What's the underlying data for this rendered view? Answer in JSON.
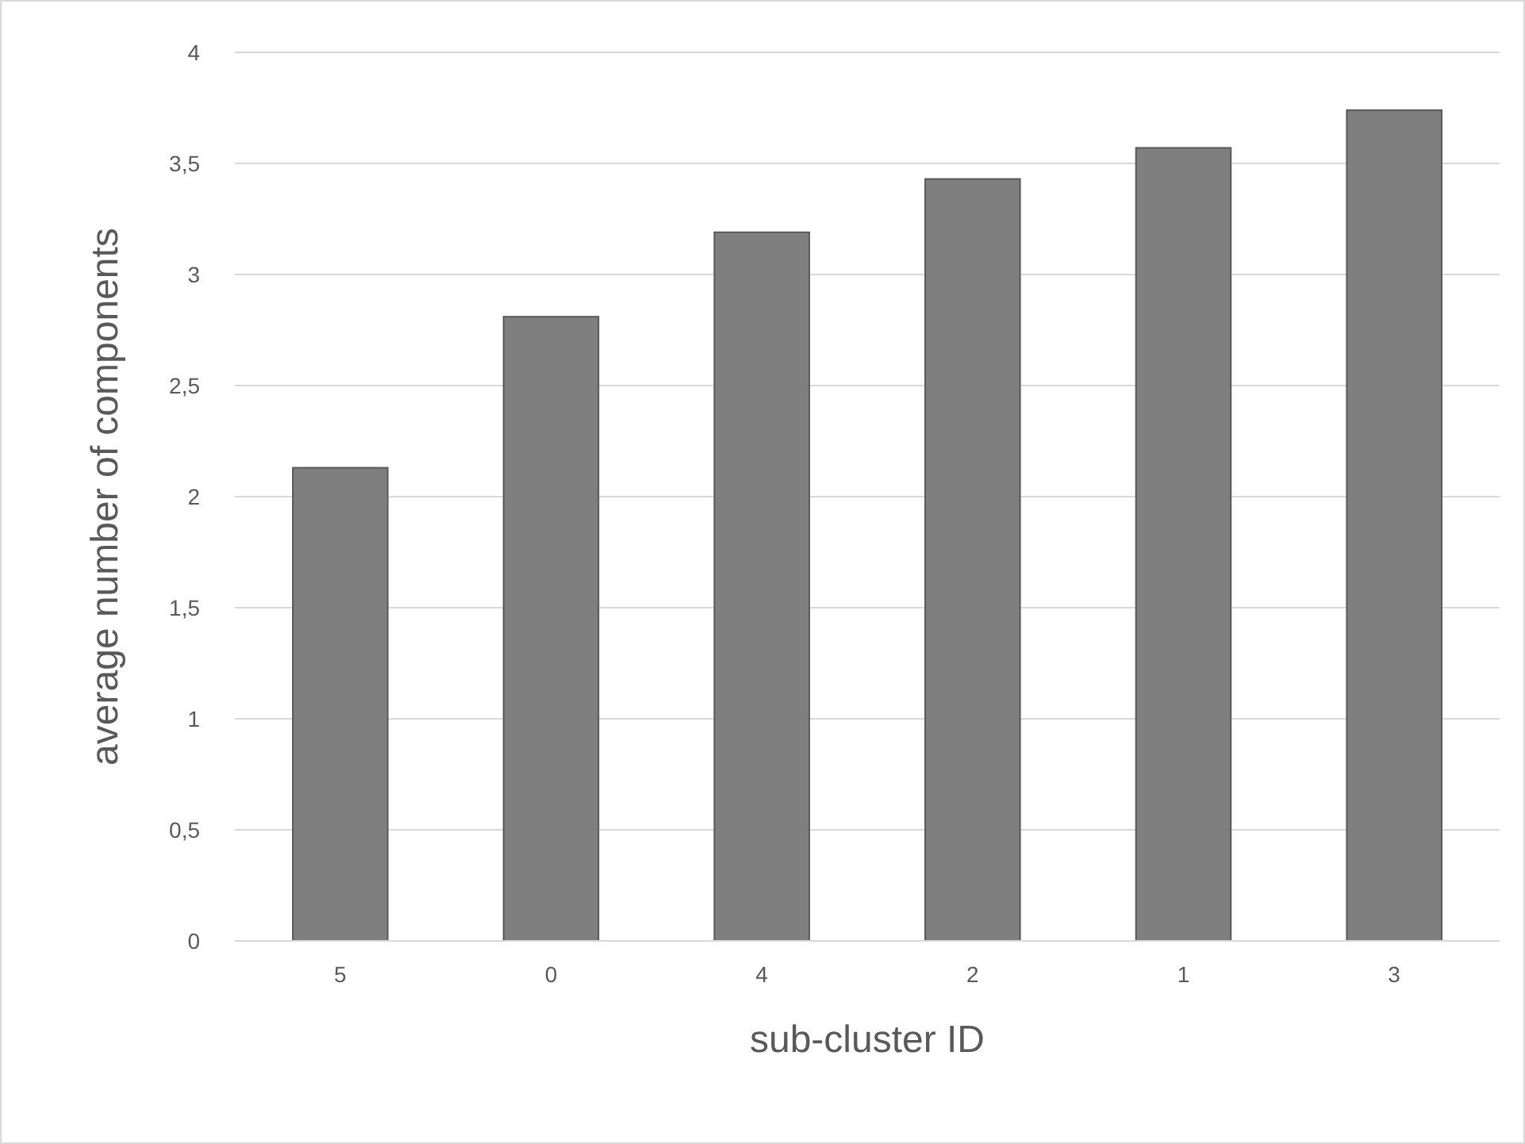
{
  "chart_data": {
    "type": "bar",
    "xlabel": "sub-cluster ID",
    "ylabel": "average number of components",
    "categories": [
      "5",
      "0",
      "4",
      "2",
      "1",
      "3"
    ],
    "values": [
      2.13,
      2.81,
      3.19,
      3.43,
      3.57,
      3.74
    ],
    "color": "#7f7f7f",
    "ylim": [
      0,
      4
    ],
    "yticks": [
      0,
      {
        "value": 0.5,
        "label": "0,5"
      },
      1,
      {
        "value": 1.5,
        "label": "1,5"
      },
      2,
      {
        "value": 2.5,
        "label": "2,5"
      },
      3,
      {
        "value": 3.5,
        "label": "3,5"
      },
      4
    ],
    "grid": "y"
  }
}
